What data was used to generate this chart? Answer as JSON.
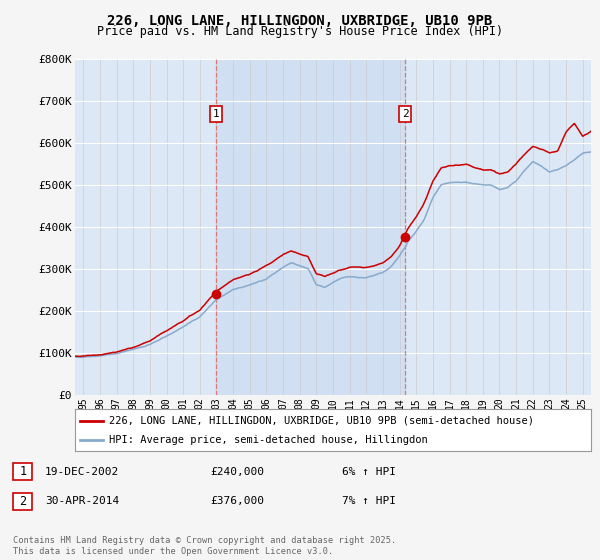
{
  "title_line1": "226, LONG LANE, HILLINGDON, UXBRIDGE, UB10 9PB",
  "title_line2": "Price paid vs. HM Land Registry's House Price Index (HPI)",
  "plot_bg": "#dce8f5",
  "plot_bg_highlight": "#c8daf0",
  "grid_color": "#cccccc",
  "fig_bg": "#f5f5f5",
  "line1_color": "#cc0000",
  "line2_color": "#88aacc",
  "vline_color": "#dd6666",
  "sale1_date": "19-DEC-2002",
  "sale1_price": "£240,000",
  "sale1_hpi": "6% ↑ HPI",
  "sale2_date": "30-APR-2014",
  "sale2_price": "£376,000",
  "sale2_hpi": "7% ↑ HPI",
  "legend1": "226, LONG LANE, HILLINGDON, UXBRIDGE, UB10 9PB (semi-detached house)",
  "legend2": "HPI: Average price, semi-detached house, Hillingdon",
  "footer": "Contains HM Land Registry data © Crown copyright and database right 2025.\nThis data is licensed under the Open Government Licence v3.0.",
  "ylim": [
    0,
    800000
  ],
  "yticks": [
    0,
    100000,
    200000,
    300000,
    400000,
    500000,
    600000,
    700000,
    800000
  ],
  "ytick_labels": [
    "£0",
    "£100K",
    "£200K",
    "£300K",
    "£400K",
    "£500K",
    "£600K",
    "£700K",
    "£800K"
  ],
  "sale1_x": 2002.96,
  "sale2_x": 2014.33,
  "sale1_y": 240000,
  "sale2_y": 376000,
  "xmin": 1994.5,
  "xmax": 2025.5,
  "xticks": [
    1995,
    1996,
    1997,
    1998,
    1999,
    2000,
    2001,
    2002,
    2003,
    2004,
    2005,
    2006,
    2007,
    2008,
    2009,
    2010,
    2011,
    2012,
    2013,
    2014,
    2015,
    2016,
    2017,
    2018,
    2019,
    2020,
    2021,
    2022,
    2023,
    2024,
    2025
  ],
  "xtick_labels": [
    "95",
    "96",
    "97",
    "98",
    "99",
    "00",
    "01",
    "02",
    "03",
    "04",
    "05",
    "06",
    "07",
    "08",
    "09",
    "10",
    "11",
    "12",
    "13",
    "14",
    "15",
    "16",
    "17",
    "18",
    "19",
    "20",
    "21",
    "22",
    "23",
    "24",
    "25"
  ]
}
